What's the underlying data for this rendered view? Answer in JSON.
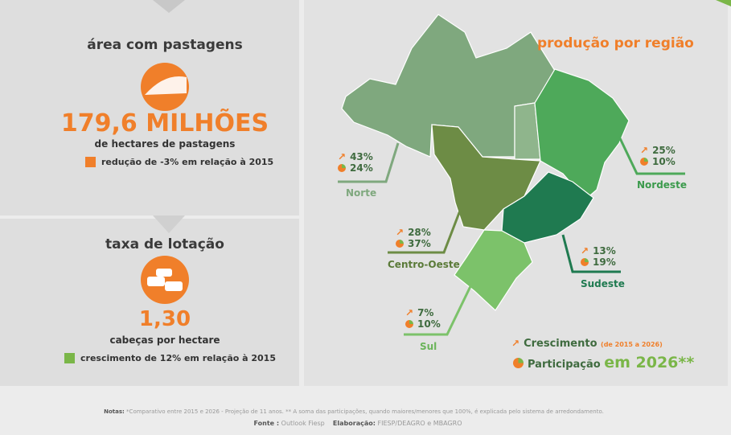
{
  "left": {
    "pasture": {
      "title": "área com pastagens",
      "value": "179,6 MILHÕES",
      "unit": "de hectares de pastagens",
      "change": "redução de -3% em relação à 2015"
    },
    "stocking": {
      "title": "taxa de lotação",
      "value": "1,30",
      "unit": "cabeças por hectare",
      "change": "crescimento de 12% em relação à 2015"
    }
  },
  "map": {
    "title": "produção por região",
    "regions": [
      {
        "name": "Norte",
        "growth": "43%",
        "share": "24%"
      },
      {
        "name": "Nordeste",
        "growth": "25%",
        "share": "10%"
      },
      {
        "name": "Centro-Oeste",
        "growth": "28%",
        "share": "37%"
      },
      {
        "name": "Sudeste",
        "growth": "13%",
        "share": "19%"
      },
      {
        "name": "Sul",
        "growth": "7%",
        "share": "10%"
      }
    ],
    "legend": {
      "growth": "Crescimento",
      "growth_note": "(de 2015 a 2026)",
      "share": "Participação",
      "share_note": "em 2026**"
    }
  },
  "footer": {
    "notes_label": "Notas:",
    "notes": "*Comparativo entre 2015 e 2026 - Projeção de 11 anos.  ** A soma das participações, quando maiores/menores que 100%, é explicada pelo sistema de arredondamento.",
    "source_label": "Fonte :",
    "source": "Outlook Fiesp",
    "elab_label": "Elaboração:",
    "elab": "FIESP/DEAGRO e MBAGRO"
  }
}
